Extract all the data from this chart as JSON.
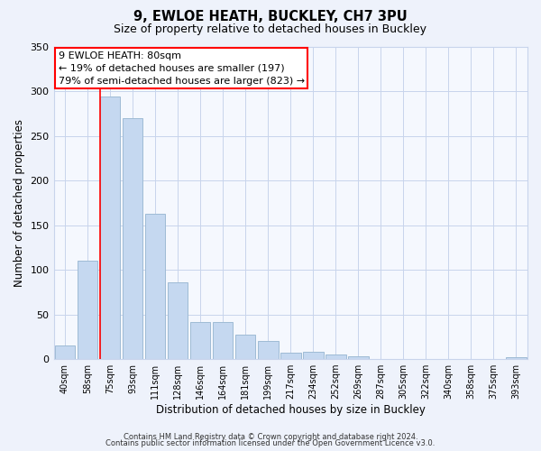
{
  "title": "9, EWLOE HEATH, BUCKLEY, CH7 3PU",
  "subtitle": "Size of property relative to detached houses in Buckley",
  "xlabel": "Distribution of detached houses by size in Buckley",
  "ylabel": "Number of detached properties",
  "bar_labels": [
    "40sqm",
    "58sqm",
    "75sqm",
    "93sqm",
    "111sqm",
    "128sqm",
    "146sqm",
    "164sqm",
    "181sqm",
    "199sqm",
    "217sqm",
    "234sqm",
    "252sqm",
    "269sqm",
    "287sqm",
    "305sqm",
    "322sqm",
    "340sqm",
    "358sqm",
    "375sqm",
    "393sqm"
  ],
  "bar_values": [
    15,
    110,
    294,
    270,
    163,
    86,
    41,
    41,
    27,
    20,
    7,
    8,
    5,
    3,
    0,
    0,
    0,
    0,
    0,
    0,
    2
  ],
  "bar_color": "#c5d8f0",
  "bar_edge_color": "#9fbbd4",
  "red_line_index": 2,
  "annotation_title": "9 EWLOE HEATH: 80sqm",
  "annotation_line1": "← 19% of detached houses are smaller (197)",
  "annotation_line2": "79% of semi-detached houses are larger (823) →",
  "ylim": [
    0,
    350
  ],
  "yticks": [
    0,
    50,
    100,
    150,
    200,
    250,
    300,
    350
  ],
  "footer1": "Contains HM Land Registry data © Crown copyright and database right 2024.",
  "footer2": "Contains public sector information licensed under the Open Government Licence v3.0.",
  "bg_color": "#eef2fb",
  "plot_bg_color": "#f5f8fe",
  "grid_color": "#c8d4ec"
}
